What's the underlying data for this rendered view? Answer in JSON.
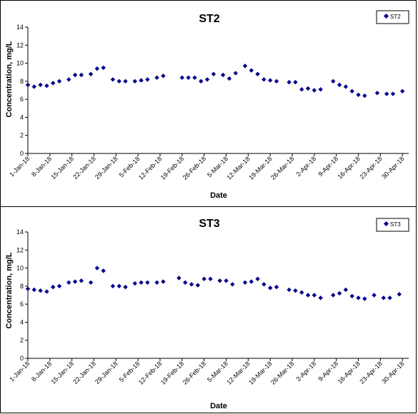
{
  "chart_data": [
    {
      "type": "scatter",
      "title": "ST2",
      "xlabel": "Date",
      "ylabel": "Concentration, mg/L",
      "ylim": [
        0,
        14
      ],
      "yticks": [
        "0",
        "2",
        "4",
        "6",
        "8",
        "10",
        "12",
        "14"
      ],
      "xlim": [
        "2018-01-01",
        "2018-05-02"
      ],
      "xticks": [
        "1-Jan-18",
        "8-Jan-18",
        "15-Jan-18",
        "22-Jan-18",
        "29-Jan-18",
        "5-Feb-18",
        "12-Feb-18",
        "19-Feb-18",
        "26-Feb-18",
        "5-Mar-18",
        "12-Mar-18",
        "19-Mar-18",
        "26-Mar-18",
        "2-Apr-18",
        "9-Apr-18",
        "16-Apr-18",
        "23-Apr-18",
        "30-Apr-18"
      ],
      "legend": "top-right",
      "marker_color": "#00008b",
      "series": [
        {
          "name": "ST2",
          "points": [
            [
              "2018-01-01",
              7.6
            ],
            [
              "2018-01-03",
              7.4
            ],
            [
              "2018-01-05",
              7.6
            ],
            [
              "2018-01-07",
              7.5
            ],
            [
              "2018-01-09",
              7.8
            ],
            [
              "2018-01-11",
              8.0
            ],
            [
              "2018-01-14",
              8.2
            ],
            [
              "2018-01-16",
              8.7
            ],
            [
              "2018-01-18",
              8.7
            ],
            [
              "2018-01-21",
              8.8
            ],
            [
              "2018-01-23",
              9.4
            ],
            [
              "2018-01-25",
              9.5
            ],
            [
              "2018-01-28",
              8.2
            ],
            [
              "2018-01-30",
              8.0
            ],
            [
              "2018-02-01",
              8.0
            ],
            [
              "2018-02-04",
              8.0
            ],
            [
              "2018-02-06",
              8.1
            ],
            [
              "2018-02-08",
              8.2
            ],
            [
              "2018-02-11",
              8.4
            ],
            [
              "2018-02-13",
              8.6
            ],
            [
              "2018-02-19",
              8.4
            ],
            [
              "2018-02-21",
              8.4
            ],
            [
              "2018-02-23",
              8.4
            ],
            [
              "2018-02-25",
              8.0
            ],
            [
              "2018-02-27",
              8.2
            ],
            [
              "2018-03-01",
              8.8
            ],
            [
              "2018-03-04",
              8.7
            ],
            [
              "2018-03-06",
              8.3
            ],
            [
              "2018-03-08",
              8.9
            ],
            [
              "2018-03-11",
              9.7
            ],
            [
              "2018-03-13",
              9.2
            ],
            [
              "2018-03-15",
              8.8
            ],
            [
              "2018-03-17",
              8.2
            ],
            [
              "2018-03-19",
              8.1
            ],
            [
              "2018-03-21",
              8.0
            ],
            [
              "2018-03-25",
              7.9
            ],
            [
              "2018-03-27",
              7.9
            ],
            [
              "2018-03-29",
              7.1
            ],
            [
              "2018-03-31",
              7.2
            ],
            [
              "2018-04-02",
              7.0
            ],
            [
              "2018-04-04",
              7.1
            ],
            [
              "2018-04-08",
              8.0
            ],
            [
              "2018-04-10",
              7.6
            ],
            [
              "2018-04-12",
              7.4
            ],
            [
              "2018-04-14",
              6.9
            ],
            [
              "2018-04-16",
              6.5
            ],
            [
              "2018-04-18",
              6.4
            ],
            [
              "2018-04-22",
              6.7
            ],
            [
              "2018-04-25",
              6.6
            ],
            [
              "2018-04-27",
              6.6
            ],
            [
              "2018-04-30",
              6.9
            ]
          ]
        }
      ]
    },
    {
      "type": "scatter",
      "title": "ST3",
      "xlabel": "Date",
      "ylabel": "Concentration, mg/L",
      "ylim": [
        0,
        14
      ],
      "yticks": [
        "0",
        "2",
        "4",
        "6",
        "8",
        "10",
        "12",
        "14"
      ],
      "xlim": [
        "2018-01-01",
        "2018-05-02"
      ],
      "xticks": [
        "1-Jan-18",
        "8-Jan-18",
        "15-Jan-18",
        "22-Jan-18",
        "29-Jan-18",
        "5-Feb-18",
        "12-Feb-18",
        "19-Feb-18",
        "26-Feb-18",
        "5-Mar-18",
        "12-Mar-18",
        "19-Mar-18",
        "26-Mar-18",
        "2-Apr-18",
        "9-Apr-18",
        "16-Apr-18",
        "23-Apr-18",
        "30-Apr-18"
      ],
      "legend": "top-right",
      "marker_color": "#00008b",
      "series": [
        {
          "name": "ST3",
          "points": [
            [
              "2018-01-01",
              7.7
            ],
            [
              "2018-01-03",
              7.6
            ],
            [
              "2018-01-05",
              7.5
            ],
            [
              "2018-01-07",
              7.4
            ],
            [
              "2018-01-09",
              7.9
            ],
            [
              "2018-01-11",
              8.0
            ],
            [
              "2018-01-14",
              8.4
            ],
            [
              "2018-01-16",
              8.5
            ],
            [
              "2018-01-18",
              8.6
            ],
            [
              "2018-01-21",
              8.4
            ],
            [
              "2018-01-23",
              10.0
            ],
            [
              "2018-01-25",
              9.7
            ],
            [
              "2018-01-28",
              8.0
            ],
            [
              "2018-01-30",
              8.0
            ],
            [
              "2018-02-01",
              7.9
            ],
            [
              "2018-02-04",
              8.3
            ],
            [
              "2018-02-06",
              8.4
            ],
            [
              "2018-02-08",
              8.4
            ],
            [
              "2018-02-11",
              8.4
            ],
            [
              "2018-02-13",
              8.5
            ],
            [
              "2018-02-18",
              8.9
            ],
            [
              "2018-02-20",
              8.4
            ],
            [
              "2018-02-22",
              8.2
            ],
            [
              "2018-02-24",
              8.1
            ],
            [
              "2018-02-26",
              8.8
            ],
            [
              "2018-02-28",
              8.8
            ],
            [
              "2018-03-03",
              8.6
            ],
            [
              "2018-03-05",
              8.6
            ],
            [
              "2018-03-07",
              8.2
            ],
            [
              "2018-03-11",
              8.4
            ],
            [
              "2018-03-13",
              8.5
            ],
            [
              "2018-03-15",
              8.8
            ],
            [
              "2018-03-17",
              8.2
            ],
            [
              "2018-03-19",
              7.8
            ],
            [
              "2018-03-21",
              7.9
            ],
            [
              "2018-03-25",
              7.6
            ],
            [
              "2018-03-27",
              7.5
            ],
            [
              "2018-03-29",
              7.3
            ],
            [
              "2018-03-31",
              7.0
            ],
            [
              "2018-04-02",
              7.0
            ],
            [
              "2018-04-04",
              6.7
            ],
            [
              "2018-04-08",
              7.0
            ],
            [
              "2018-04-10",
              7.2
            ],
            [
              "2018-04-12",
              7.6
            ],
            [
              "2018-04-14",
              6.9
            ],
            [
              "2018-04-16",
              6.7
            ],
            [
              "2018-04-18",
              6.6
            ],
            [
              "2018-04-21",
              7.0
            ],
            [
              "2018-04-24",
              6.7
            ],
            [
              "2018-04-26",
              6.7
            ],
            [
              "2018-04-29",
              7.1
            ]
          ]
        }
      ]
    }
  ]
}
